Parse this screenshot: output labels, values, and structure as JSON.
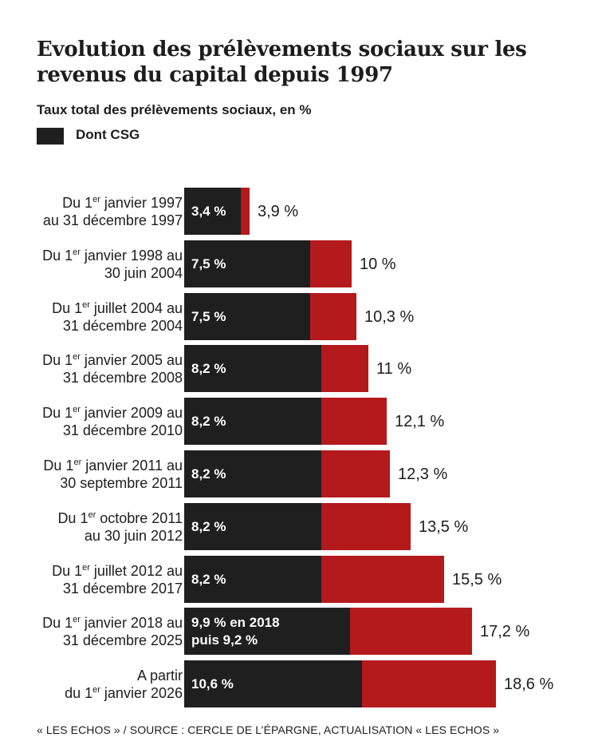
{
  "title": "Evolution des prélèvements sociaux sur les revenus du capital depuis 1997",
  "subtitle": "Taux total des prélèvements sociaux, en %",
  "legend": {
    "swatch_color": "#1f1f1f",
    "label": "Dont CSG"
  },
  "source": "« LES ECHOS » / SOURCE : CERCLE DE L’ÉPARGNE, ACTUALISATION « LES ECHOS »",
  "colors": {
    "total": "#b4191c",
    "csg": "#1f1f1f"
  },
  "chart_data": {
    "type": "bar",
    "orientation": "horizontal",
    "title": "Evolution des prélèvements sociaux sur les revenus du capital depuis 1997",
    "subtitle": "Taux total des prélèvements sociaux, en %",
    "legend_position": "top-left",
    "grid": false,
    "categories": [
      {
        "pre": "Du 1",
        "sup": "er",
        "post": " janvier 1997",
        "line2": "au 31 décembre 1997"
      },
      {
        "pre": "Du 1",
        "sup": "er",
        "post": " janvier 1998 au",
        "line2": "30 juin 2004"
      },
      {
        "pre": "Du 1",
        "sup": "er",
        "post": " juillet 2004 au",
        "line2": "31 décembre 2004"
      },
      {
        "pre": "Du 1",
        "sup": "er",
        "post": " janvier 2005 au",
        "line2": "31 décembre 2008"
      },
      {
        "pre": "Du 1",
        "sup": "er",
        "post": " janvier 2009 au",
        "line2": "31 décembre 2010"
      },
      {
        "pre": "Du 1",
        "sup": "er",
        "post": " janvier 2011 au",
        "line2": "30 septembre 2011"
      },
      {
        "pre": "Du 1",
        "sup": "er",
        "post": " octobre 2011",
        "line2": "au 30 juin 2012"
      },
      {
        "pre": "Du 1",
        "sup": "er",
        "post": " juillet 2012 au",
        "line2": "31 décembre 2017"
      },
      {
        "pre": "Du 1",
        "sup": "er",
        "post": " janvier 2018 au",
        "line2": "31 décembre 2025"
      },
      {
        "pre": "A partir",
        "sup": "",
        "post": "",
        "line2": "du 1|er| janvier 2026"
      }
    ],
    "series": [
      {
        "name": "Taux total",
        "values": [
          3.9,
          10,
          10.3,
          11,
          12.1,
          12.3,
          13.5,
          15.5,
          17.2,
          18.6
        ],
        "labels": [
          "3,9 %",
          "10 %",
          "10,3 %",
          "11 %",
          "12,1 %",
          "12,3 %",
          "13,5 %",
          "15,5 %",
          "17,2 %",
          "18,6 %"
        ]
      },
      {
        "name": "Dont CSG",
        "values": [
          3.4,
          7.5,
          7.5,
          8.2,
          8.2,
          8.2,
          8.2,
          8.2,
          9.9,
          10.6
        ],
        "labels": [
          "3,4 %",
          "7,5 %",
          "7,5 %",
          "8,2 %",
          "8,2 %",
          "8,2 %",
          "8,2 %",
          "8,2 %",
          "9,9 % en 2018|puis 9,2 %",
          "10,6 %"
        ]
      }
    ],
    "xlim": [
      0,
      18.6
    ]
  }
}
